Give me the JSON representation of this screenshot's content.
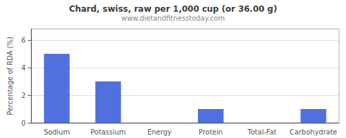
{
  "chart_data": {
    "type": "bar",
    "title": "Chard, swiss, raw per 1,000 cup (or 36.00 g)",
    "subtitle": "www.dietandfitnesstoday.com",
    "categories": [
      "Sodium",
      "Potassium",
      "Energy",
      "Protein",
      "Total-Fat",
      "Carbohydrate"
    ],
    "values": [
      5.0,
      3.0,
      0.0,
      1.0,
      0.0,
      1.0
    ],
    "ylabel": "Percentage of RDA (%)",
    "ylim": [
      0,
      6.8
    ],
    "yticks": [
      0,
      2,
      4,
      6
    ],
    "grid": true
  }
}
